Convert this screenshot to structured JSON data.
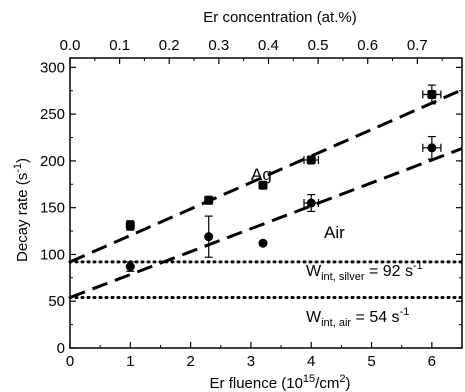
{
  "chart_data": {
    "type": "scatter",
    "xlabel": "Er fluence (10",
    "xlabel_sup": "15",
    "xlabel_tail": "/cm",
    "xlabel_sup2": "2",
    "xlabel_end": ")",
    "x2label": "Er concentration (at.%)",
    "ylabel": "Decay rate (s",
    "ylabel_sup": "-1",
    "ylabel_end": ")",
    "xlim": [
      0,
      6.5
    ],
    "ylim": [
      0,
      310
    ],
    "x2lim": [
      0.0,
      0.79
    ],
    "x_ticks": [
      0,
      1,
      2,
      3,
      4,
      5,
      6
    ],
    "x_tick_labels": [
      "0",
      "1",
      "2",
      "3",
      "4",
      "5",
      "6"
    ],
    "y_ticks": [
      0,
      50,
      100,
      150,
      200,
      250,
      300
    ],
    "y_tick_labels": [
      "0",
      "50",
      "100",
      "150",
      "200",
      "250",
      "300"
    ],
    "x2_ticks": [
      0.0,
      0.1,
      0.2,
      0.3,
      0.4,
      0.5,
      0.6,
      0.7
    ],
    "x2_tick_labels": [
      "0.0",
      "0.1",
      "0.2",
      "0.3",
      "0.4",
      "0.5",
      "0.6",
      "0.7"
    ],
    "grid": false,
    "series": [
      {
        "name": "Ag",
        "marker": "square",
        "points": [
          {
            "x": 1.0,
            "y": 131,
            "yerr": 5,
            "xerr": 0
          },
          {
            "x": 2.3,
            "y": 158,
            "yerr": 4,
            "xerr": 0
          },
          {
            "x": 3.2,
            "y": 174,
            "yerr": 3,
            "xerr": 0
          },
          {
            "x": 4.0,
            "y": 201,
            "yerr": 2,
            "xerr": 0.12
          },
          {
            "x": 6.0,
            "y": 271,
            "yerr": 10,
            "xerr": 0.15
          }
        ],
        "fit": {
          "slope": 28.3,
          "intercept": 92
        }
      },
      {
        "name": "Air",
        "marker": "circle",
        "points": [
          {
            "x": 1.0,
            "y": 87,
            "yerr": 5,
            "xerr": 0
          },
          {
            "x": 2.3,
            "y": 119,
            "yerr": 22,
            "xerr": 0
          },
          {
            "x": 3.2,
            "y": 112,
            "yerr": 2,
            "xerr": 0
          },
          {
            "x": 4.0,
            "y": 155,
            "yerr": 9,
            "xerr": 0.12
          },
          {
            "x": 6.0,
            "y": 214,
            "yerr": 12,
            "xerr": 0.15
          }
        ],
        "fit": {
          "slope": 24.5,
          "intercept": 54
        }
      }
    ],
    "reference_lines": [
      {
        "y": 92,
        "label_main": "W",
        "label_sub": "int, silver",
        "label_value": " = 92 s",
        "label_sup": "-1"
      },
      {
        "y": 54,
        "label_main": "W",
        "label_sub": "int, air",
        "label_value": " = 54 s",
        "label_sup": "-1"
      }
    ],
    "colors": {
      "axis": "#000000",
      "marker": "#000000",
      "fit": "#000000"
    }
  }
}
